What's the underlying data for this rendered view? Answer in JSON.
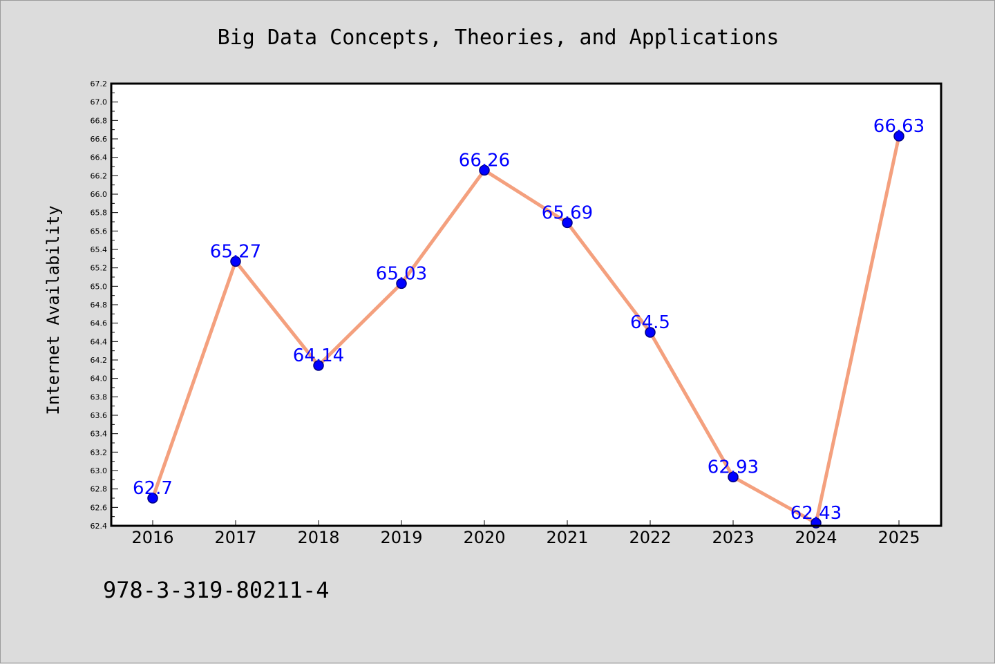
{
  "chart_data": {
    "type": "line",
    "title": "Big Data Concepts, Theories, and Applications",
    "xlabel": "",
    "ylabel": "Internet Availability",
    "categories": [
      "2016",
      "2017",
      "2018",
      "2019",
      "2020",
      "2021",
      "2022",
      "2023",
      "2024",
      "2025"
    ],
    "series": [
      {
        "values": [
          62.7,
          65.27,
          64.14,
          65.03,
          66.26,
          65.69,
          64.5,
          62.93,
          62.43,
          66.63
        ],
        "data_labels": [
          "62.7",
          "65.27",
          "64.14",
          "65.03",
          "66.26",
          "65.69",
          "64.5",
          "62.93",
          "62.43",
          "66.63"
        ]
      }
    ],
    "ylim": [
      62.4,
      67.2
    ],
    "yticks": [
      "62.4",
      "62.6",
      "62.8",
      "63.0",
      "63.2",
      "63.4",
      "63.6",
      "63.8",
      "64.0",
      "64.2",
      "64.4",
      "64.6",
      "64.8",
      "65.0",
      "65.2",
      "65.4",
      "65.6",
      "65.8",
      "66.0",
      "66.2",
      "66.4",
      "66.6",
      "66.8",
      "67.0",
      "67.2"
    ],
    "grid": false,
    "legend": "none",
    "colors": {
      "line": "#f4a07e",
      "marker": "#0000ff",
      "marker_edge": "#000080",
      "data_label": "#0000ff",
      "plot_background": "#ffffff",
      "figure_background": "#dcdcdc"
    }
  },
  "footer": {
    "isbn": "978-3-319-80211-4"
  }
}
